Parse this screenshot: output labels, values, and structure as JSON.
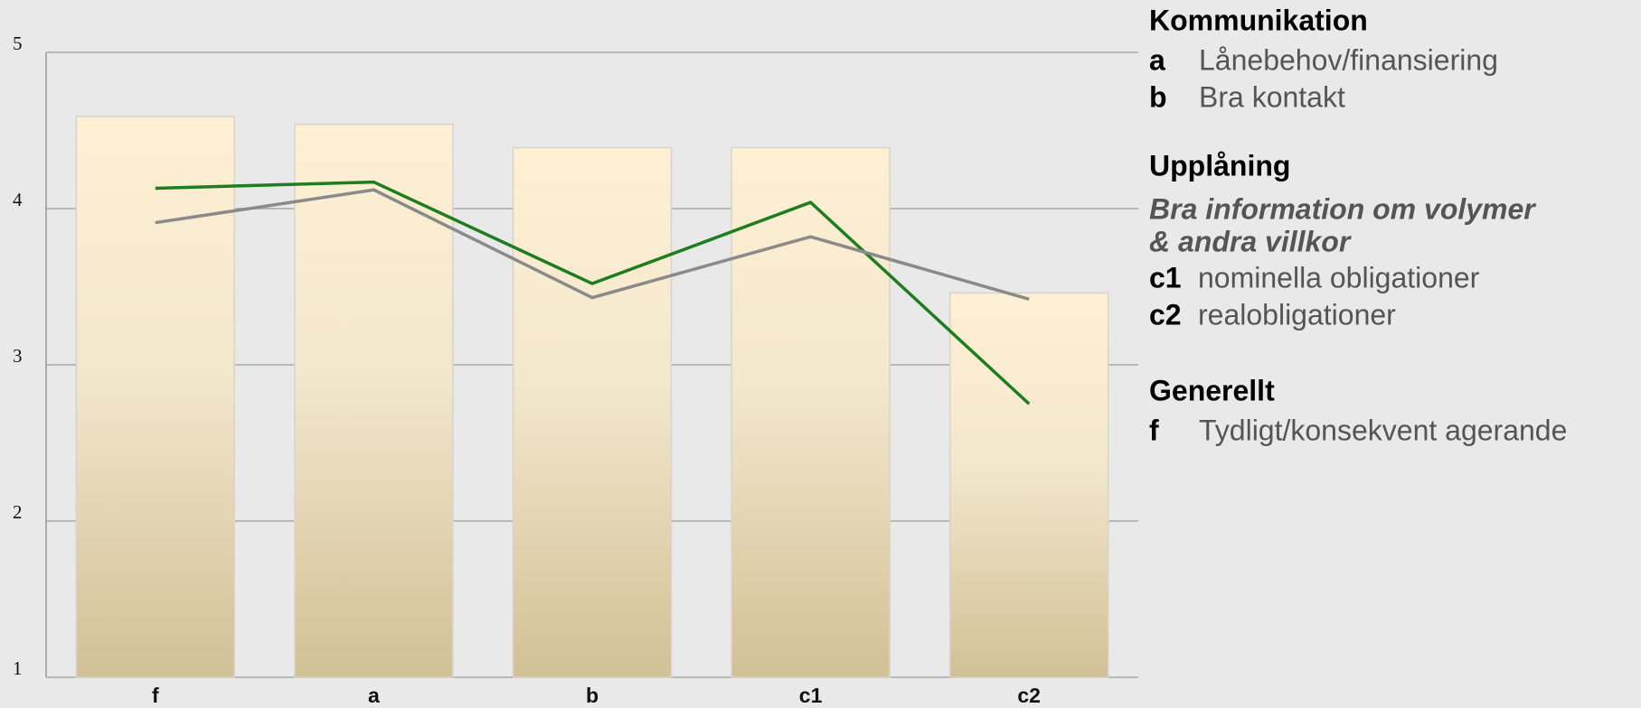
{
  "chart_data": {
    "type": "bar",
    "categories": [
      "f",
      "a",
      "b",
      "c1",
      "c2"
    ],
    "values": [
      4.59,
      4.54,
      4.39,
      4.39,
      3.46
    ],
    "color": "#f5e6c4",
    "series": [
      {
        "type": "line",
        "color": "#1e7d1e",
        "values": [
          4.13,
          4.17,
          3.52,
          4.04,
          2.75
        ]
      },
      {
        "type": "line",
        "color": "#8a8a8a",
        "values": [
          3.91,
          4.12,
          3.43,
          3.82,
          3.42
        ]
      }
    ],
    "ylim": [
      1,
      5
    ],
    "yticks": [
      1,
      2,
      3,
      4,
      5
    ],
    "grid": true
  },
  "sidebar": {
    "sections": [
      {
        "heading": "Kommunikation",
        "items": [
          {
            "key": "a",
            "label": "Lånebehov/finansiering"
          },
          {
            "key": "b",
            "label": "Bra kontakt"
          }
        ]
      },
      {
        "heading": "Upplåning",
        "subheading": [
          "Bra information om volymer",
          "& andra villkor"
        ],
        "items": [
          {
            "key": "c1",
            "label": "nominella obligationer"
          },
          {
            "key": "c2",
            "label": "realobligationer"
          }
        ]
      },
      {
        "heading": "Generellt",
        "items": [
          {
            "key": "f",
            "label": "Tydligt/konsekvent agerande"
          }
        ]
      }
    ]
  }
}
